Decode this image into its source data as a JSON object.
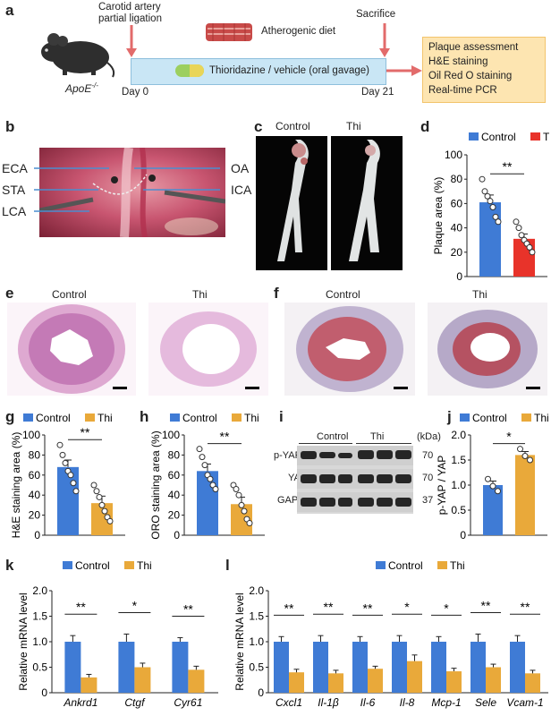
{
  "panels": {
    "a": "a",
    "b": "b",
    "c": "c",
    "d": "d",
    "e": "e",
    "f": "f",
    "g": "g",
    "h": "h",
    "i": "i",
    "j": "j",
    "k": "k",
    "l": "l"
  },
  "colors": {
    "control": "#3f7bd5",
    "thi_red": "#e8332a",
    "thi_orange": "#e9a93a",
    "timeline": "#c9e6f5",
    "arrow": "#e26b6b",
    "outcome_bg": "#fde5b1"
  },
  "a": {
    "ligation": "Carotid artery",
    "ligation2": "partial ligation",
    "sacrifice": "Sacrifice",
    "diet": "Atherogenic diet",
    "treatment": "Thioridazine / vehicle (oral gavage)",
    "day0": "Day 0",
    "day21": "Day 21",
    "mouse": "ApoE",
    "mouse_sup": "-/-",
    "outcomes": [
      "Plaque assessment",
      "H&E staining",
      "Oil Red O staining",
      "Real-time PCR"
    ]
  },
  "b": {
    "labels": {
      "eca": "ECA",
      "sta": "STA",
      "lca": "LCA",
      "oa": "OA",
      "ica": "ICA"
    }
  },
  "c": {
    "control": "Control",
    "thi": "Thi"
  },
  "e": {
    "control": "Control",
    "thi": "Thi"
  },
  "f": {
    "control": "Control",
    "thi": "Thi"
  },
  "i": {
    "control": "Control",
    "thi": "Thi",
    "kda": "(kDa)",
    "rows": [
      {
        "name": "p-YAP",
        "kda": "70"
      },
      {
        "name": "YAP",
        "kda": "70"
      },
      {
        "name": "GAPDH",
        "kda": "37"
      }
    ]
  },
  "chart_data": [
    {
      "panel": "d",
      "type": "bar",
      "ylabel": "Plaque area (%)",
      "ylim": [
        0,
        100
      ],
      "yticks": [
        0,
        20,
        40,
        60,
        80,
        100
      ],
      "legend": [
        "Control",
        "Thi"
      ],
      "sig": "**",
      "series": [
        {
          "name": "Control",
          "mean": 61,
          "sem": 6,
          "points": [
            80,
            70,
            66,
            62,
            57,
            49,
            45
          ]
        },
        {
          "name": "Thi",
          "mean": 31,
          "sem": 4,
          "points": [
            45,
            40,
            34,
            30,
            27,
            24,
            20
          ]
        }
      ]
    },
    {
      "panel": "g",
      "type": "bar",
      "ylabel": "H&E staining area (%)",
      "ylim": [
        0,
        100
      ],
      "yticks": [
        0,
        20,
        40,
        60,
        80,
        100
      ],
      "legend": [
        "Control",
        "Thi"
      ],
      "sig": "**",
      "series": [
        {
          "name": "Control",
          "mean": 68,
          "sem": 7,
          "points": [
            90,
            80,
            72,
            64,
            60,
            52,
            44
          ]
        },
        {
          "name": "Thi",
          "mean": 32,
          "sem": 7,
          "points": [
            50,
            44,
            38,
            30,
            24,
            18,
            14
          ]
        }
      ]
    },
    {
      "panel": "h",
      "type": "bar",
      "ylabel": "ORO staining area (%)",
      "ylim": [
        0,
        100
      ],
      "yticks": [
        0,
        20,
        40,
        60,
        80,
        100
      ],
      "legend": [
        "Control",
        "Thi"
      ],
      "sig": "**",
      "series": [
        {
          "name": "Control",
          "mean": 64,
          "sem": 7,
          "points": [
            86,
            78,
            70,
            60,
            56,
            50,
            46
          ]
        },
        {
          "name": "Thi",
          "mean": 31,
          "sem": 7,
          "points": [
            50,
            46,
            40,
            30,
            24,
            16,
            12
          ]
        }
      ]
    },
    {
      "panel": "j",
      "type": "bar",
      "ylabel": "p-YAP / YAP",
      "ylim": [
        0,
        2.0
      ],
      "yticks": [
        0,
        0.5,
        1.0,
        1.5,
        2.0
      ],
      "legend": [
        "Control",
        "Thi"
      ],
      "sig": "*",
      "series": [
        {
          "name": "Control",
          "mean": 1.0,
          "sem": 0.08,
          "points": [
            1.12,
            0.98,
            0.88
          ]
        },
        {
          "name": "Thi",
          "mean": 1.6,
          "sem": 0.07,
          "points": [
            1.72,
            1.58,
            1.5
          ]
        }
      ]
    },
    {
      "panel": "k",
      "type": "bar",
      "ylabel": "Relative mRNA level",
      "ylim": [
        0,
        2.0
      ],
      "yticks": [
        0,
        0.5,
        1.0,
        1.5,
        2.0
      ],
      "legend": [
        "Control",
        "Thi"
      ],
      "categories": [
        "Ankrd1",
        "Ctgf",
        "Cyr61"
      ],
      "sig": [
        "**",
        "*",
        "**"
      ],
      "series": [
        {
          "name": "Control",
          "values": [
            1.0,
            1.0,
            1.0
          ],
          "sem": [
            0.12,
            0.15,
            0.08
          ]
        },
        {
          "name": "Thi",
          "values": [
            0.3,
            0.5,
            0.45
          ],
          "sem": [
            0.06,
            0.08,
            0.07
          ]
        }
      ]
    },
    {
      "panel": "l",
      "type": "bar",
      "ylabel": "Relative mRNA level",
      "ylim": [
        0,
        2.0
      ],
      "yticks": [
        0,
        0.5,
        1.0,
        1.5,
        2.0
      ],
      "legend": [
        "Control",
        "Thi"
      ],
      "categories": [
        "Cxcl1",
        "Il-1β",
        "Il-6",
        "Il-8",
        "Mcp-1",
        "Sele",
        "Vcam-1"
      ],
      "sig": [
        "**",
        "**",
        "**",
        "*",
        "*",
        "**",
        "**"
      ],
      "series": [
        {
          "name": "Control",
          "values": [
            1.0,
            1.0,
            1.0,
            1.0,
            1.0,
            1.0,
            1.0
          ],
          "sem": [
            0.1,
            0.12,
            0.1,
            0.12,
            0.1,
            0.15,
            0.12
          ]
        },
        {
          "name": "Thi",
          "values": [
            0.4,
            0.38,
            0.47,
            0.62,
            0.42,
            0.5,
            0.38
          ],
          "sem": [
            0.06,
            0.06,
            0.05,
            0.12,
            0.06,
            0.06,
            0.06
          ]
        }
      ]
    }
  ]
}
